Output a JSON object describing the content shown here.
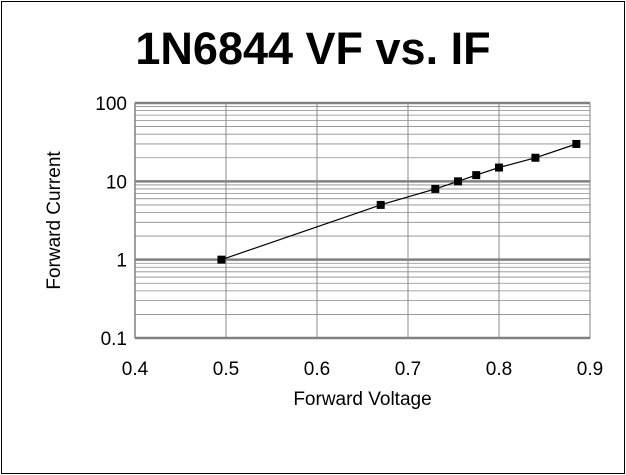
{
  "chart_data": {
    "type": "scatter",
    "title": "1N6844 VF vs. IF",
    "xlabel": "Forward Voltage",
    "ylabel": "Forward Current",
    "xlim": [
      0.4,
      0.9
    ],
    "ylim": [
      0.1,
      100
    ],
    "y_scale": "log",
    "x_ticks": [
      "0.4",
      "0.5",
      "0.6",
      "0.7",
      "0.8",
      "0.9"
    ],
    "y_ticks": [
      "0.1",
      "1",
      "10",
      "100"
    ],
    "grid": true,
    "legend": "none",
    "series": [
      {
        "x": [
          0.495,
          0.67,
          0.73,
          0.755,
          0.775,
          0.8,
          0.84,
          0.885
        ],
        "y": [
          1,
          5,
          8,
          10,
          12,
          15,
          20,
          30
        ],
        "marker": "square",
        "line": true
      }
    ]
  }
}
